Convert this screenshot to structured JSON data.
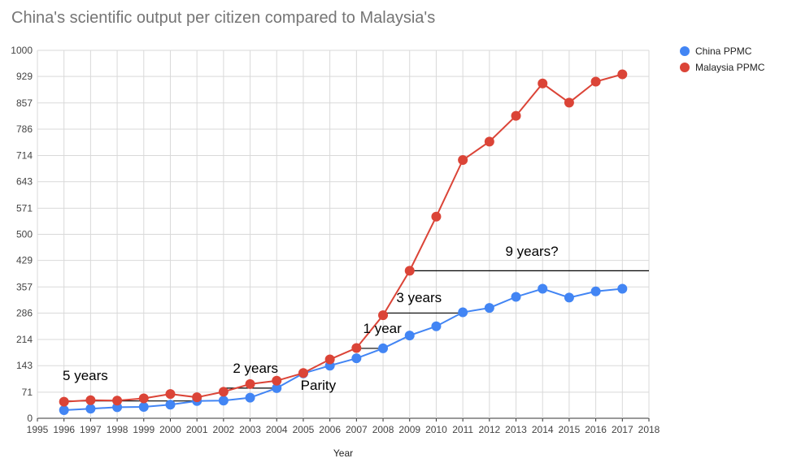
{
  "chart_data": {
    "type": "line",
    "title": "China's scientific output per citizen compared to Malaysia's",
    "xlabel": "Year",
    "ylabel": "",
    "xlim": [
      1995,
      2018
    ],
    "ylim": [
      0,
      1000
    ],
    "x_ticks": [
      "1995",
      "1996",
      "1997",
      "1998",
      "1999",
      "2000",
      "2001",
      "2002",
      "2003",
      "2004",
      "2005",
      "2006",
      "2007",
      "2008",
      "2009",
      "2010",
      "2011",
      "2012",
      "2013",
      "2014",
      "2015",
      "2016",
      "2017",
      "2018"
    ],
    "y_ticks": [
      "0",
      "71",
      "143",
      "214",
      "286",
      "357",
      "429",
      "500",
      "571",
      "643",
      "714",
      "786",
      "857",
      "929",
      "1000"
    ],
    "grid": true,
    "legend_position": "right",
    "x": [
      1996,
      1997,
      1998,
      1999,
      2000,
      2001,
      2002,
      2003,
      2004,
      2005,
      2006,
      2007,
      2008,
      2009,
      2010,
      2011,
      2012,
      2013,
      2014,
      2015,
      2016,
      2017
    ],
    "series": [
      {
        "name": "China PPMC",
        "color": "#4285f4",
        "values": [
          22,
          26,
          30,
          31,
          37,
          47,
          48,
          56,
          82,
          122,
          143,
          163,
          190,
          225,
          250,
          288,
          300,
          330,
          352,
          328,
          345,
          352
        ]
      },
      {
        "name": "Malaysia PPMC",
        "color": "#db4437",
        "values": [
          45,
          49,
          48,
          54,
          66,
          57,
          72,
          93,
          102,
          123,
          160,
          191,
          280,
          401,
          548,
          702,
          752,
          822,
          910,
          858,
          915,
          935
        ]
      }
    ],
    "annotations": [
      {
        "text": "5 years",
        "x_from": 1996,
        "x_to": 2001,
        "y": 47
      },
      {
        "text": "2 years",
        "x_from": 2002,
        "x_to": 2004,
        "y": 82
      },
      {
        "text": "Parity",
        "x": 2005,
        "y": 122
      },
      {
        "text": "1 year",
        "x_from": 2007,
        "x_to": 2008,
        "y": 190
      },
      {
        "text": "3 years",
        "x_from": 2008,
        "x_to": 2011,
        "y": 286
      },
      {
        "text": "9 years?",
        "x_from": 2009,
        "x_to": 2018,
        "y": 401
      }
    ]
  }
}
